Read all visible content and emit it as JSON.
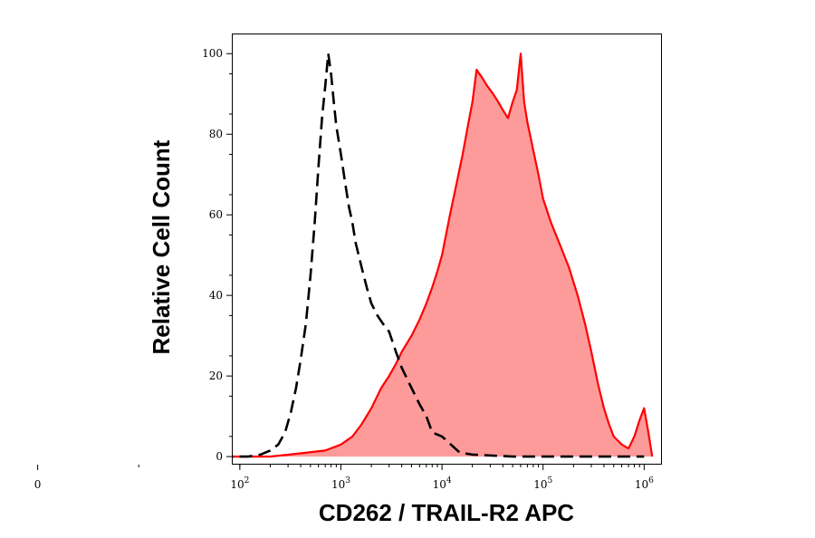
{
  "chart_data": {
    "type": "area",
    "xlabel": "CD262 / TRAIL-R2 APC",
    "ylabel": "Relative Cell Count",
    "x_scale": "biexponential",
    "xlim": [
      -120,
      1500000
    ],
    "ylim": [
      -2,
      105
    ],
    "x_ticks": [
      {
        "value": 0,
        "base": "0",
        "exp": ""
      },
      {
        "value": 100,
        "base": "10",
        "exp": "2"
      },
      {
        "value": 1000,
        "base": "10",
        "exp": "3"
      },
      {
        "value": 10000,
        "base": "10",
        "exp": "4"
      },
      {
        "value": 100000,
        "base": "10",
        "exp": "5"
      },
      {
        "value": 1000000,
        "base": "10",
        "exp": "6"
      }
    ],
    "y_ticks": [
      0,
      20,
      40,
      60,
      80,
      100
    ],
    "grid": false,
    "series": [
      {
        "style": "dashed-outline",
        "color": "#000000",
        "points": [
          [
            -60,
            0
          ],
          [
            0,
            0
          ],
          [
            60,
            0
          ],
          [
            120,
            0
          ],
          [
            160,
            0.5
          ],
          [
            200,
            1.5
          ],
          [
            240,
            3
          ],
          [
            280,
            6
          ],
          [
            320,
            11
          ],
          [
            360,
            17
          ],
          [
            400,
            24
          ],
          [
            450,
            33
          ],
          [
            500,
            45
          ],
          [
            550,
            58
          ],
          [
            600,
            72
          ],
          [
            650,
            84
          ],
          [
            700,
            92
          ],
          [
            750,
            100
          ],
          [
            800,
            95
          ],
          [
            850,
            88
          ],
          [
            900,
            82
          ],
          [
            1000,
            75
          ],
          [
            1100,
            68
          ],
          [
            1200,
            62
          ],
          [
            1300,
            58
          ],
          [
            1400,
            53
          ],
          [
            1600,
            47
          ],
          [
            1800,
            42
          ],
          [
            2000,
            38
          ],
          [
            2300,
            35
          ],
          [
            2600,
            33
          ],
          [
            3000,
            31
          ],
          [
            3500,
            26
          ],
          [
            4000,
            22
          ],
          [
            5000,
            17
          ],
          [
            6000,
            13
          ],
          [
            7000,
            10
          ],
          [
            8000,
            6
          ],
          [
            10000,
            5
          ],
          [
            15000,
            1
          ],
          [
            20000,
            0.5
          ],
          [
            50000,
            0
          ],
          [
            1000000,
            0
          ]
        ]
      },
      {
        "style": "filled",
        "color": "#ff0000",
        "fill": "#fd9b9b",
        "points": [
          [
            -60,
            0
          ],
          [
            0,
            0
          ],
          [
            200,
            0
          ],
          [
            400,
            0.8
          ],
          [
            700,
            1.5
          ],
          [
            1000,
            3
          ],
          [
            1300,
            5
          ],
          [
            1600,
            8
          ],
          [
            2000,
            12
          ],
          [
            2500,
            17
          ],
          [
            3000,
            20
          ],
          [
            3500,
            23
          ],
          [
            4000,
            26
          ],
          [
            5000,
            30
          ],
          [
            6000,
            34
          ],
          [
            7000,
            38
          ],
          [
            8000,
            42
          ],
          [
            9000,
            46
          ],
          [
            10000,
            50
          ],
          [
            12000,
            60
          ],
          [
            14000,
            68
          ],
          [
            16000,
            75
          ],
          [
            18000,
            82
          ],
          [
            20000,
            88
          ],
          [
            22000,
            96
          ],
          [
            25000,
            94
          ],
          [
            28000,
            92
          ],
          [
            32000,
            90
          ],
          [
            36000,
            88
          ],
          [
            40000,
            86
          ],
          [
            45000,
            84
          ],
          [
            50000,
            88
          ],
          [
            55000,
            91
          ],
          [
            60000,
            100
          ],
          [
            65000,
            88
          ],
          [
            70000,
            83
          ],
          [
            80000,
            76
          ],
          [
            90000,
            70
          ],
          [
            100000,
            64
          ],
          [
            120000,
            58
          ],
          [
            150000,
            52
          ],
          [
            180000,
            47
          ],
          [
            220000,
            40
          ],
          [
            260000,
            33
          ],
          [
            300000,
            26
          ],
          [
            350000,
            18
          ],
          [
            400000,
            12
          ],
          [
            450000,
            8
          ],
          [
            500000,
            5
          ],
          [
            600000,
            3
          ],
          [
            700000,
            2
          ],
          [
            800000,
            5
          ],
          [
            900000,
            9
          ],
          [
            1000000,
            12
          ],
          [
            1100000,
            6
          ],
          [
            1200000,
            0
          ]
        ]
      }
    ]
  }
}
